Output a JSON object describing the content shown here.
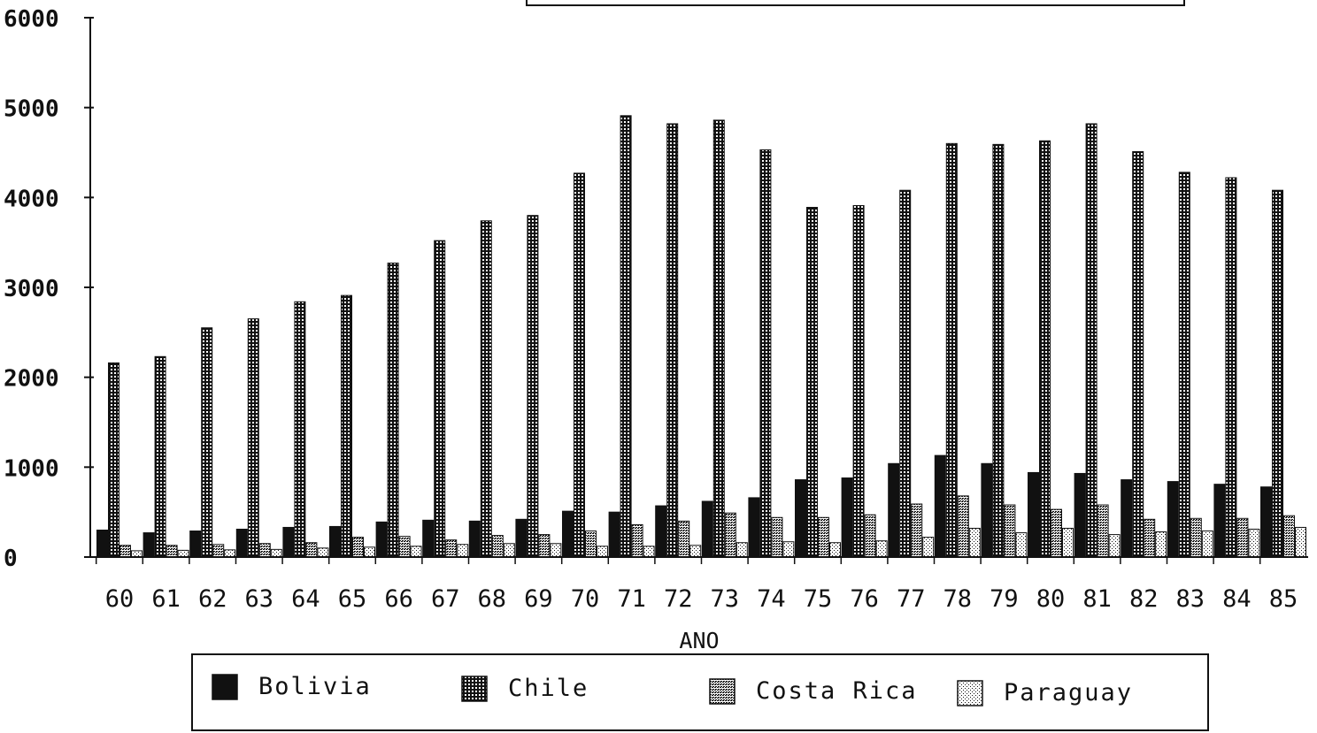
{
  "chart_data": {
    "type": "bar",
    "xlabel": "ANO",
    "ylabel": "",
    "ylim": [
      0,
      6000
    ],
    "yticks": [
      0,
      1000,
      2000,
      3000,
      4000,
      5000,
      6000
    ],
    "yticklabels": [
      "0",
      "1000",
      "2000",
      "3000",
      "4000",
      "5000",
      "6000"
    ],
    "grid": false,
    "legend_position": "bottom",
    "categories": [
      "60",
      "61",
      "62",
      "63",
      "64",
      "65",
      "66",
      "67",
      "68",
      "69",
      "70",
      "71",
      "72",
      "73",
      "74",
      "75",
      "76",
      "77",
      "78",
      "79",
      "80",
      "81",
      "82",
      "83",
      "84",
      "85"
    ],
    "series": [
      {
        "name": "Bolivia",
        "pattern": "solid",
        "color": "#111111",
        "values": [
          300,
          270,
          290,
          310,
          330,
          340,
          390,
          410,
          400,
          420,
          510,
          500,
          570,
          620,
          660,
          860,
          880,
          1040,
          1130,
          1040,
          940,
          930,
          860,
          840,
          810,
          780
        ]
      },
      {
        "name": "Chile",
        "pattern": "grid",
        "color": "#111111",
        "values": [
          2160,
          2230,
          2550,
          2650,
          2840,
          2910,
          3270,
          3520,
          3740,
          3800,
          4270,
          4910,
          4820,
          4860,
          4530,
          3890,
          3910,
          4080,
          4600,
          4590,
          4630,
          4820,
          4510,
          4280,
          4220,
          4080
        ]
      },
      {
        "name": "Costa Rica",
        "pattern": "dense-dots",
        "color": "#111111",
        "values": [
          130,
          130,
          140,
          150,
          160,
          220,
          230,
          190,
          240,
          250,
          290,
          360,
          400,
          490,
          440,
          440,
          470,
          590,
          680,
          580,
          530,
          580,
          420,
          430,
          430,
          460
        ]
      },
      {
        "name": "Paraguay",
        "pattern": "light-dots",
        "color": "#111111",
        "values": [
          70,
          75,
          80,
          85,
          100,
          110,
          120,
          140,
          150,
          150,
          120,
          120,
          130,
          160,
          170,
          160,
          180,
          220,
          320,
          270,
          320,
          250,
          280,
          290,
          310,
          330
        ]
      }
    ]
  }
}
